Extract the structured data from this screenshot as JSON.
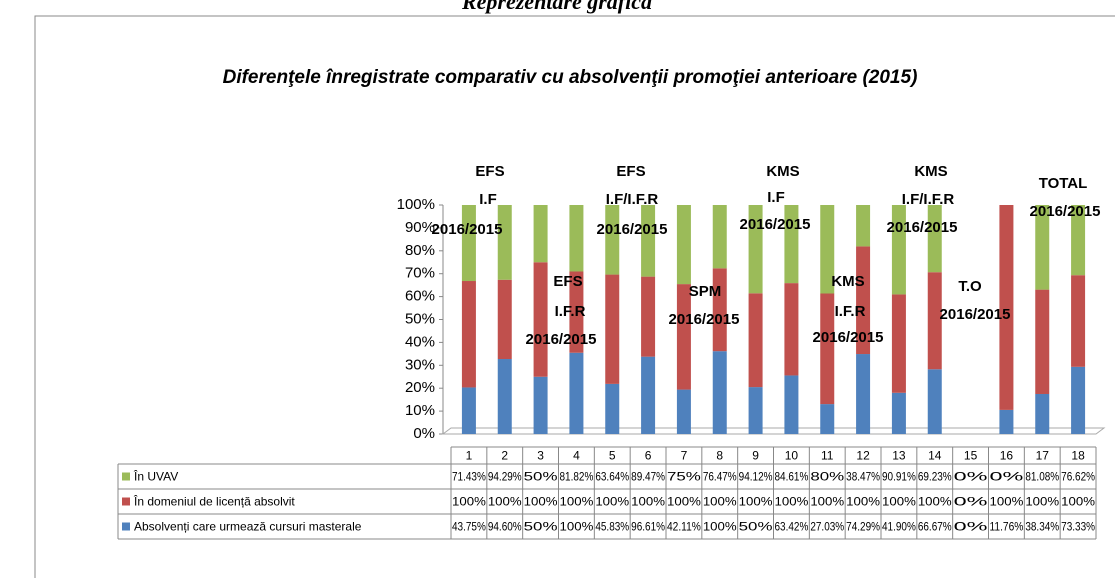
{
  "header": {
    "title": "Reprezentare grafică"
  },
  "chart_data": {
    "type": "stacked_bar_100",
    "title": "Diferenţele înregistrate comparativ cu absolvenţii promoţiei anterioare (2015)",
    "categories": [
      1,
      2,
      3,
      4,
      5,
      6,
      7,
      8,
      9,
      10,
      11,
      12,
      13,
      14,
      15,
      16,
      17,
      18
    ],
    "series": [
      {
        "name": "Absolvenți care urmează cursuri masterale",
        "color": "#4f81bd",
        "values": [
          43.75,
          94.6,
          50,
          100,
          45.83,
          96.61,
          42.11,
          100,
          50,
          63.42,
          27.03,
          74.29,
          41.9,
          66.67,
          0,
          11.76,
          38.34,
          73.33
        ],
        "value_labels": [
          "43.75%",
          "94.60%",
          "50%",
          "100%",
          "45.83%",
          "96.61%",
          "42.11%",
          "100%",
          "50%",
          "63.42%",
          "27.03%",
          "74.29%",
          "41.90%",
          "66.67%",
          "0%",
          "11.76%",
          "38.34%",
          "73.33%"
        ]
      },
      {
        "name": "În domeniul de licență absolvit",
        "color": "#c0504d",
        "values": [
          100,
          100,
          100,
          100,
          100,
          100,
          100,
          100,
          100,
          100,
          100,
          100,
          100,
          100,
          0,
          100,
          100,
          100
        ],
        "value_labels": [
          "100%",
          "100%",
          "100%",
          "100%",
          "100%",
          "100%",
          "100%",
          "100%",
          "100%",
          "100%",
          "100%",
          "100%",
          "100%",
          "100%",
          "0%",
          "100%",
          "100%",
          "100%"
        ]
      },
      {
        "name": "În UVAV",
        "color": "#9bbb59",
        "values": [
          71.43,
          94.29,
          50,
          81.82,
          63.64,
          89.47,
          75,
          76.47,
          94.12,
          84.61,
          80,
          38.47,
          90.91,
          69.23,
          0,
          0,
          81.08,
          76.62
        ],
        "value_labels": [
          "71.43%",
          "94.29%",
          "50%",
          "81.82%",
          "63.64%",
          "89.47%",
          "75%",
          "76.47%",
          "94.12%",
          "84.61%",
          "80%",
          "38.47%",
          "90.91%",
          "69.23%",
          "0%",
          "0%",
          "81.08%",
          "76.62%"
        ]
      }
    ],
    "ylim": [
      0,
      100
    ],
    "yticks": [
      {
        "value": 0,
        "label": "0%"
      },
      {
        "value": 10,
        "label": "10%"
      },
      {
        "value": 20,
        "label": "20%"
      },
      {
        "value": 30,
        "label": "30%"
      },
      {
        "value": 40,
        "label": "40%"
      },
      {
        "value": 50,
        "label": "50%"
      },
      {
        "value": 60,
        "label": "60%"
      },
      {
        "value": 70,
        "label": "70%"
      },
      {
        "value": 80,
        "label": "80%"
      },
      {
        "value": 90,
        "label": "90%"
      },
      {
        "value": 100,
        "label": "100%"
      }
    ],
    "annotations": [
      {
        "text": "EFS",
        "color": "#ff0000"
      },
      {
        "text": "I.F",
        "color": "#ff0000"
      },
      {
        "text": "2016/2015",
        "color": "#000000"
      },
      {
        "text": "EFS",
        "color": "#ff0000"
      },
      {
        "text": "I.F/I.F.R",
        "color": "#ff0000"
      },
      {
        "text": "2016/2015",
        "color": "#000000"
      },
      {
        "text": "KMS",
        "color": "#ff0000"
      },
      {
        "text": "I.F",
        "color": "#ff0000"
      },
      {
        "text": "2016/2015",
        "color": "#000000"
      },
      {
        "text": "KMS",
        "color": "#ff0000"
      },
      {
        "text": "I.F/I.F.R",
        "color": "#ff0000"
      },
      {
        "text": "2016/2015",
        "color": "#000000"
      },
      {
        "text": "TOTAL",
        "color": "#ff0000"
      },
      {
        "text": "2016/2015",
        "color": "#000000"
      },
      {
        "text": "EFS",
        "color": "#000000"
      },
      {
        "text": "I.F.R",
        "color": "#000000"
      },
      {
        "text": "2016/2015",
        "color": "#000000"
      },
      {
        "text": "SPM",
        "color": "#000000"
      },
      {
        "text": "2016/2015",
        "color": "#000000"
      },
      {
        "text": "KMS",
        "color": "#000000"
      },
      {
        "text": "I.F.R",
        "color": "#000000"
      },
      {
        "text": "2016/2015",
        "color": "#000000"
      },
      {
        "text": "T.O",
        "color": "#000000"
      },
      {
        "text": "2016/2015",
        "color": "#000000"
      }
    ]
  }
}
